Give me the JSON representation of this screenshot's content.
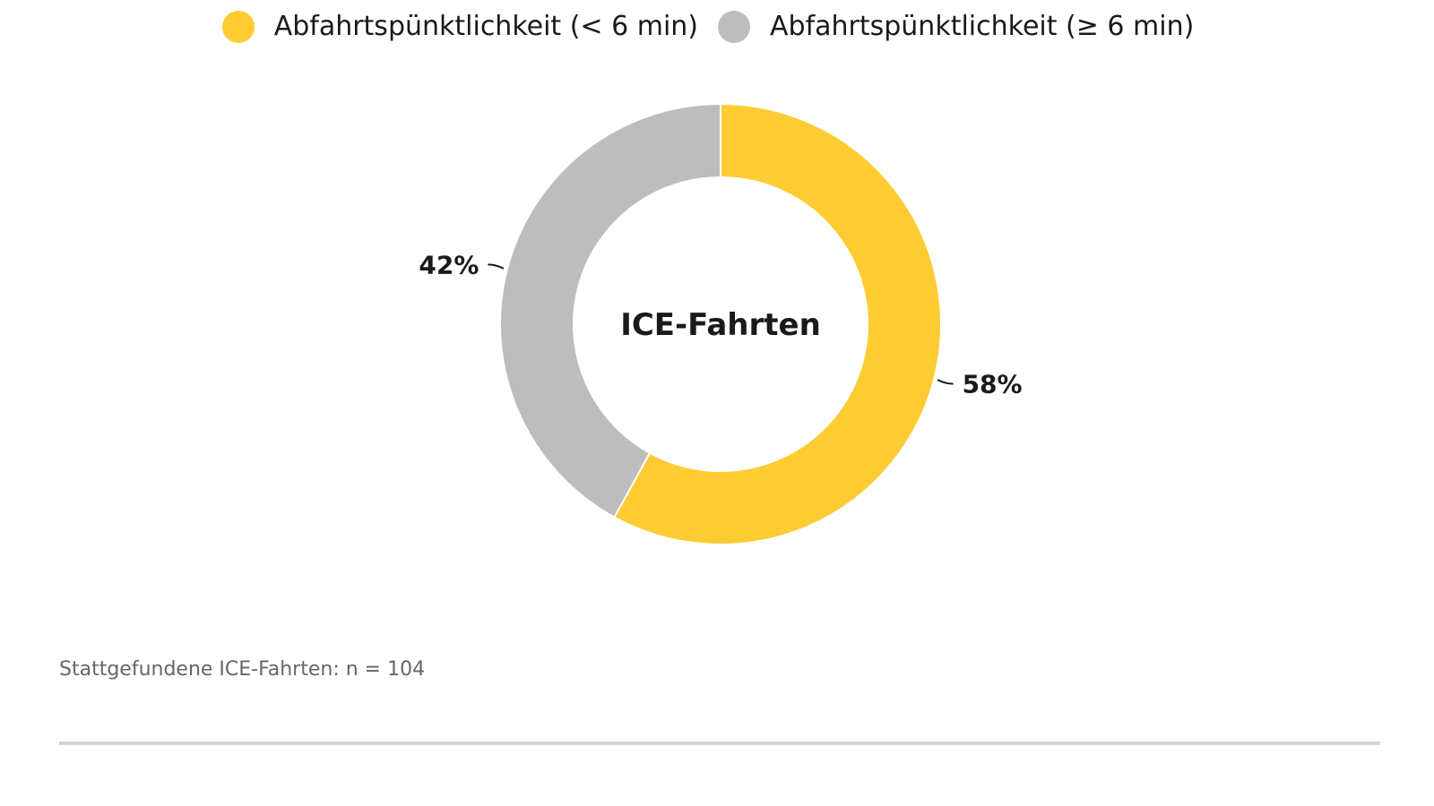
{
  "chart_data": {
    "type": "pie",
    "center_label": "ICE-Fahrten",
    "slices": [
      {
        "name": "Abfahrtspünktlichkeit (< 6 min)",
        "value": 58,
        "label": "58%",
        "color": "#fccc32"
      },
      {
        "name": "Abfahrtspünktlichkeit (≥ 6 min)",
        "value": 42,
        "label": "42%",
        "color": "#bdbdbd"
      }
    ],
    "legend_position": "top-center",
    "donut": true
  },
  "legend": {
    "items": [
      {
        "label": "Abfahrtspünktlichkeit (< 6 min)",
        "color": "#fccc32"
      },
      {
        "label": "Abfahrtspünktlichkeit (≥ 6 min)",
        "color": "#bdbdbd"
      }
    ]
  },
  "footnote": "Stattgefundene ICE-Fahrten: n = 104"
}
